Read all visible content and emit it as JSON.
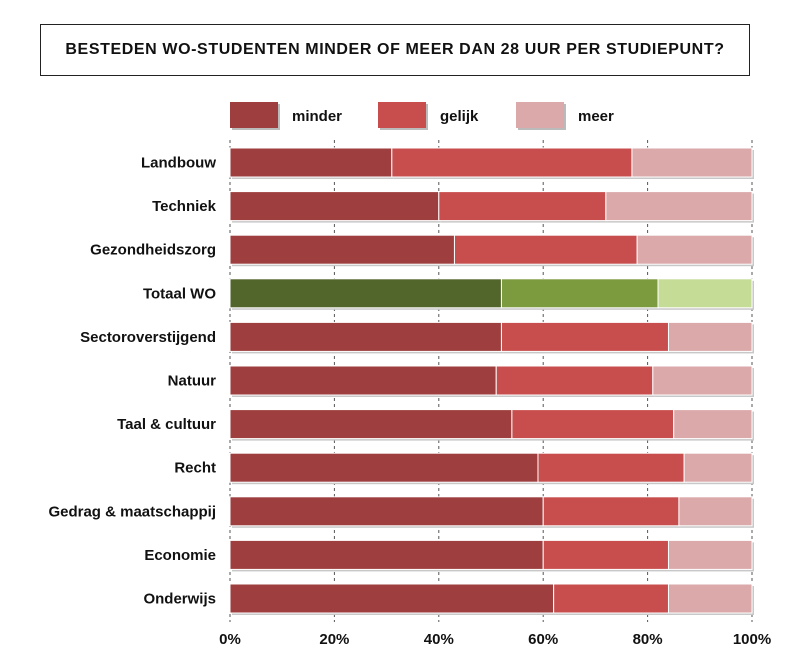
{
  "chart_data": {
    "type": "bar",
    "orientation": "horizontal",
    "stacked": true,
    "percent": true,
    "title": "BESTEDEN WO-STUDENTEN MINDER OF MEER DAN 28 UUR PER STUDIEPUNT?",
    "categories": [
      "Landbouw",
      "Techniek",
      "Gezondheidszorg",
      "Totaal WO",
      "Sectoroverstijgend",
      "Natuur",
      "Taal & cultuur",
      "Recht",
      "Gedrag & maatschappij",
      "Economie",
      "Onderwijs"
    ],
    "series": [
      {
        "name": "minder",
        "color": "#9e3e3e",
        "values": [
          31,
          40,
          43,
          52,
          52,
          51,
          54,
          59,
          60,
          60,
          62
        ]
      },
      {
        "name": "gelijk",
        "color": "#c84e4e",
        "values": [
          46,
          32,
          35,
          30,
          32,
          30,
          31,
          28,
          26,
          24,
          22
        ]
      },
      {
        "name": "meer",
        "color": "#dba9a9",
        "values": [
          23,
          28,
          22,
          18,
          16,
          19,
          15,
          13,
          14,
          16,
          16
        ]
      }
    ],
    "highlight": {
      "category": "Totaal WO",
      "colors": [
        "#52652a",
        "#7c9a3e",
        "#c5dc96"
      ]
    },
    "xlim": [
      0,
      100
    ],
    "xticks": [
      "0%",
      "20%",
      "40%",
      "60%",
      "80%",
      "100%"
    ],
    "grid": "vertical dashed",
    "legend_position": "top"
  }
}
